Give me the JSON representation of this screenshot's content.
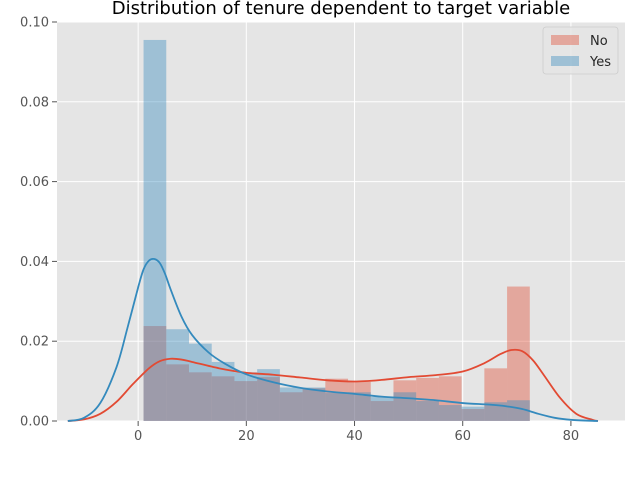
{
  "chart_data": {
    "type": "bar",
    "title": "Distribution of tenure dependent to target variable",
    "xlabel": "",
    "ylabel": "",
    "xlim": [
      -15,
      90
    ],
    "ylim": [
      0,
      0.1
    ],
    "xticks": [
      0,
      20,
      40,
      60,
      80
    ],
    "yticks": [
      0.0,
      0.02,
      0.04,
      0.06,
      0.08,
      0.1
    ],
    "xtick_labels": [
      "0",
      "20",
      "40",
      "60",
      "80"
    ],
    "ytick_labels": [
      "0.00",
      "0.02",
      "0.04",
      "0.06",
      "0.08",
      "0.10"
    ],
    "grid": true,
    "legend_position": "top-right",
    "colors": {
      "No": "#E24A33",
      "Yes": "#348ABD",
      "plot_bg": "#E5E5E5",
      "grid": "#FFFFFF"
    },
    "bin_width": 4.2,
    "bin_starts": [
      1.0,
      5.2,
      9.4,
      13.6,
      17.8,
      22.0,
      26.2,
      30.4,
      34.6,
      38.8,
      43.0,
      47.2,
      51.4,
      55.6,
      59.8,
      64.0,
      68.2
    ],
    "series": [
      {
        "name": "No",
        "kind": "histogram",
        "values": [
          0.0238,
          0.0142,
          0.0122,
          0.0112,
          0.01,
          0.011,
          0.0072,
          0.0082,
          0.0106,
          0.0098,
          0.005,
          0.0102,
          0.0108,
          0.0112,
          0.003,
          0.0132,
          0.0337
        ]
      },
      {
        "name": "Yes",
        "kind": "histogram",
        "values": [
          0.0955,
          0.023,
          0.0194,
          0.0148,
          0.0122,
          0.013,
          0.0084,
          0.0084,
          0.007,
          0.0072,
          0.006,
          0.0072,
          0.005,
          0.004,
          0.0036,
          0.0047,
          0.0052
        ]
      },
      {
        "name": "No",
        "kind": "kde",
        "x": [
          -13,
          -10,
          -7,
          -4,
          -1,
          2,
          4,
          6,
          8,
          10,
          15,
          20,
          25,
          30,
          35,
          40,
          45,
          50,
          55,
          60,
          64,
          67,
          69,
          71,
          73,
          75,
          78,
          81,
          84,
          85
        ],
        "y": [
          0.0,
          0.0004,
          0.0018,
          0.0048,
          0.0092,
          0.0132,
          0.015,
          0.0156,
          0.0154,
          0.0148,
          0.0132,
          0.0121,
          0.0116,
          0.0109,
          0.0102,
          0.0099,
          0.0103,
          0.011,
          0.0115,
          0.0124,
          0.0145,
          0.0168,
          0.0178,
          0.0175,
          0.0152,
          0.0115,
          0.0058,
          0.0018,
          0.0003,
          0.0
        ]
      },
      {
        "name": "Yes",
        "kind": "kde",
        "x": [
          -13,
          -10,
          -7,
          -4,
          -2,
          0,
          1,
          2,
          3,
          4,
          5,
          6,
          8,
          10,
          13,
          16,
          20,
          25,
          30,
          35,
          40,
          45,
          50,
          55,
          60,
          65,
          68,
          71,
          74,
          77,
          80,
          85
        ],
        "y": [
          0.0,
          0.0008,
          0.0045,
          0.0135,
          0.0232,
          0.0335,
          0.038,
          0.0402,
          0.0406,
          0.0396,
          0.0368,
          0.033,
          0.0262,
          0.0215,
          0.0172,
          0.0144,
          0.0117,
          0.0097,
          0.0083,
          0.0074,
          0.0068,
          0.0061,
          0.0057,
          0.0052,
          0.0045,
          0.0041,
          0.0037,
          0.003,
          0.0018,
          0.0008,
          0.0003,
          0.0
        ]
      }
    ]
  }
}
